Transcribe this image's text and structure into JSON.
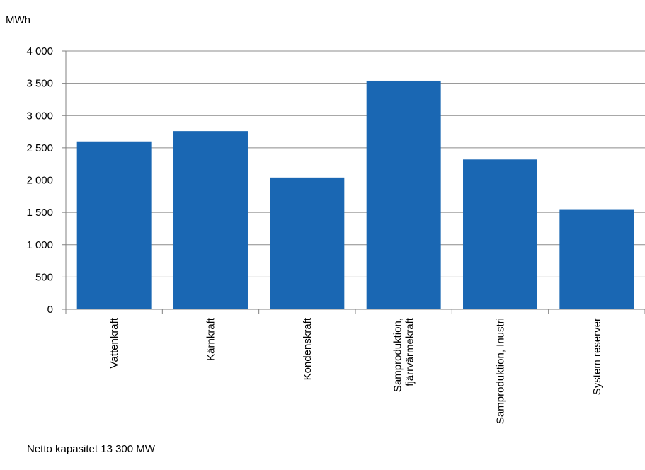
{
  "chart_data": {
    "type": "bar",
    "ylabel": "MWh",
    "categories": [
      [
        "Vattenkraft"
      ],
      [
        "Kärnkraft"
      ],
      [
        "Kondenskraft"
      ],
      [
        "Samproduktion,",
        "fjärrvärmekraft"
      ],
      [
        "Samproduktion, Inustri"
      ],
      [
        "System reserver"
      ]
    ],
    "values": [
      2600,
      2760,
      2040,
      3540,
      2320,
      1550
    ],
    "ylim": [
      0,
      4000
    ],
    "yticks": [
      0,
      500,
      1000,
      1500,
      2000,
      2500,
      3000,
      3500,
      4000
    ],
    "ytick_labels": [
      "0",
      "500",
      "1 000",
      "1 500",
      "2 000",
      "2 500",
      "3 000",
      "3 500",
      "4 000"
    ],
    "grid": true,
    "bar_color": "#1a67b3"
  },
  "footnote": "Netto kapasitet 13 300 MW"
}
